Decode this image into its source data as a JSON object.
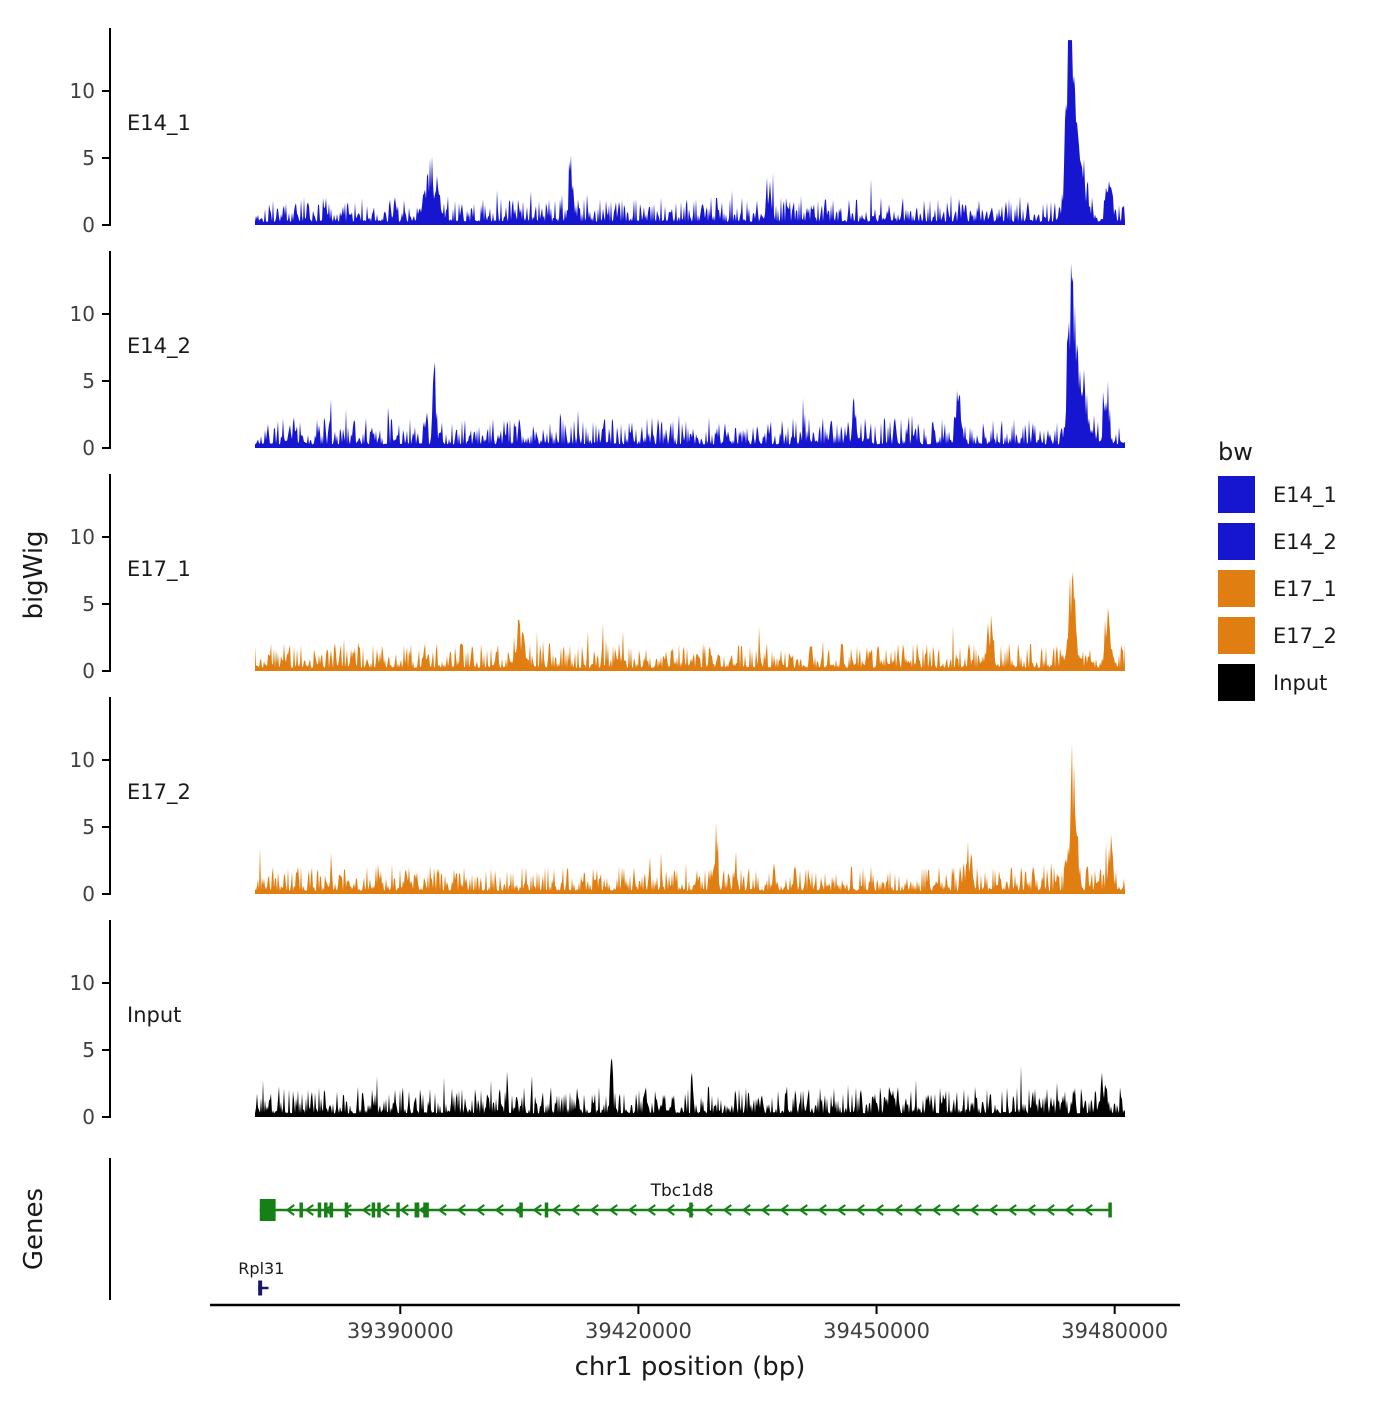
{
  "figure": {
    "y_axis_label": "bigWig",
    "genes_axis_label": "Genes",
    "x_axis_label": "chr1 position (bp)",
    "y_ticks": [
      "0",
      "5",
      "10"
    ],
    "x_ticks": [
      {
        "bp": 39390000,
        "label": "39390000"
      },
      {
        "bp": 39420000,
        "label": "39420000"
      },
      {
        "bp": 39450000,
        "label": "39450000"
      },
      {
        "bp": 39480000,
        "label": "39480000"
      }
    ],
    "background": "#ffffff",
    "axis_color": "#000000",
    "tick_label_color": "#404040"
  },
  "legend": {
    "title": "bw",
    "entries": [
      {
        "label": "E14_1",
        "color": "#1616d1"
      },
      {
        "label": "E14_2",
        "color": "#1616d1"
      },
      {
        "label": "E17_1",
        "color": "#e07e12"
      },
      {
        "label": "E17_2",
        "color": "#e07e12"
      },
      {
        "label": "Input",
        "color": "#000000"
      }
    ]
  },
  "chart_data": {
    "type": "area",
    "title": "",
    "xlabel": "chr1 position (bp)",
    "ylabel": "bigWig",
    "x_unit": "bp",
    "chromosome": "chr1",
    "x_range": [
      39371700,
      39481300
    ],
    "ylim": [
      0,
      14
    ],
    "y_tick_values": [
      0,
      5,
      10
    ],
    "legend_position": "right",
    "grid": false,
    "tracks": [
      {
        "name": "E14_1",
        "color": "#1616d1",
        "seed": 101,
        "baseline_max": 2.1,
        "peaks": [
          {
            "x": 39474400,
            "h": 13.0,
            "sigma": 450
          },
          {
            "x": 39475300,
            "h": 5.0,
            "sigma": 800
          },
          {
            "x": 39393900,
            "h": 3.3,
            "sigma": 800
          },
          {
            "x": 39411500,
            "h": 3.8,
            "sigma": 250
          },
          {
            "x": 39436500,
            "h": 2.6,
            "sigma": 300
          },
          {
            "x": 39479300,
            "h": 3.0,
            "sigma": 350
          }
        ]
      },
      {
        "name": "E14_2",
        "color": "#1616d1",
        "seed": 202,
        "baseline_max": 2.3,
        "peaks": [
          {
            "x": 39474600,
            "h": 10.6,
            "sigma": 450
          },
          {
            "x": 39475700,
            "h": 4.2,
            "sigma": 800
          },
          {
            "x": 39394300,
            "h": 5.4,
            "sigma": 200
          },
          {
            "x": 39447200,
            "h": 3.2,
            "sigma": 250
          },
          {
            "x": 39460300,
            "h": 3.4,
            "sigma": 300
          },
          {
            "x": 39478900,
            "h": 4.2,
            "sigma": 300
          }
        ]
      },
      {
        "name": "E17_1",
        "color": "#e07e12",
        "seed": 303,
        "baseline_max": 2.1,
        "peaks": [
          {
            "x": 39474700,
            "h": 6.6,
            "sigma": 400
          },
          {
            "x": 39479200,
            "h": 3.2,
            "sigma": 350
          },
          {
            "x": 39464200,
            "h": 2.8,
            "sigma": 350
          },
          {
            "x": 39405200,
            "h": 2.2,
            "sigma": 500
          }
        ]
      },
      {
        "name": "E17_2",
        "color": "#e07e12",
        "seed": 404,
        "baseline_max": 2.1,
        "peaks": [
          {
            "x": 39474800,
            "h": 9.2,
            "sigma": 400
          },
          {
            "x": 39429800,
            "h": 4.1,
            "sigma": 180
          },
          {
            "x": 39461600,
            "h": 2.2,
            "sigma": 400
          },
          {
            "x": 39479500,
            "h": 2.8,
            "sigma": 300
          }
        ]
      },
      {
        "name": "Input",
        "color": "#000000",
        "seed": 505,
        "baseline_max": 2.3,
        "peaks": [
          {
            "x": 39416600,
            "h": 2.2,
            "sigma": 150
          },
          {
            "x": 39452000,
            "h": 1.6,
            "sigma": 300
          },
          {
            "x": 39478500,
            "h": 1.6,
            "sigma": 400
          }
        ]
      }
    ]
  },
  "genes_track": {
    "label": "Genes",
    "genes": [
      {
        "name": "Tbc1d8",
        "color": "#168016",
        "strand": "-",
        "start": 39372300,
        "end": 39479600,
        "label_bp": 39425500,
        "exons": [
          [
            39372300,
            39374300
          ],
          [
            39377300,
            39377600
          ],
          [
            39379600,
            39379900
          ],
          [
            39380400,
            39380700
          ],
          [
            39381100,
            39381400
          ],
          [
            39383000,
            39383300
          ],
          [
            39386400,
            39386700
          ],
          [
            39387100,
            39387400
          ],
          [
            39389500,
            39389800
          ],
          [
            39391800,
            39392400
          ],
          [
            39392900,
            39393600
          ],
          [
            39405000,
            39405300
          ],
          [
            39408200,
            39408500
          ],
          [
            39426400,
            39426700
          ],
          [
            39479200,
            39479600
          ]
        ],
        "tall_exon_index": 0
      },
      {
        "name": "Rpl31",
        "color": "#16166b",
        "strand": "+",
        "start": 39372100,
        "end": 39373400,
        "label_bp": 39372500,
        "exons": [
          [
            39372100,
            39372600
          ]
        ],
        "tall_exon_index": -1
      }
    ]
  }
}
